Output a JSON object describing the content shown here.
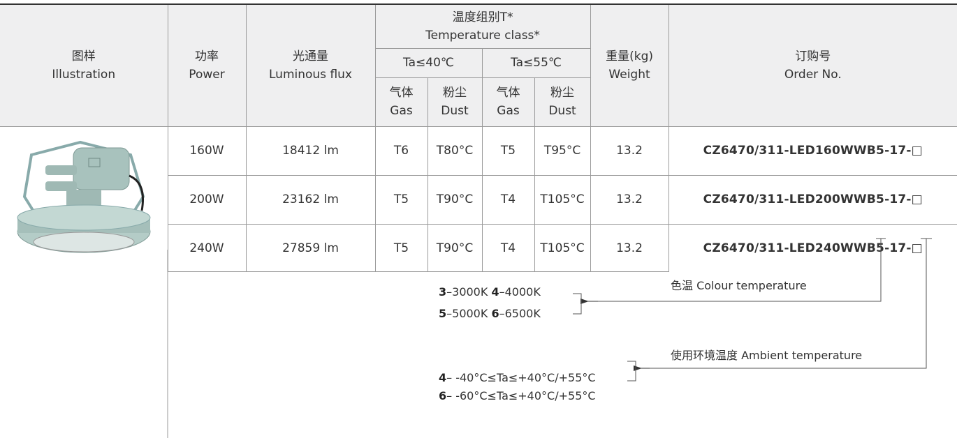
{
  "header": {
    "illustration": [
      "图样",
      "Illustration"
    ],
    "power": [
      "功率",
      "Power"
    ],
    "flux": [
      "光通量",
      "Luminous flux"
    ],
    "temperature_class": [
      "温度组别T*",
      "Temperature class*"
    ],
    "ta40": "Ta≤40℃",
    "ta55": "Ta≤55℃",
    "gas": [
      "气体",
      "Gas"
    ],
    "dust": [
      "粉尘",
      "Dust"
    ],
    "weight": [
      "重量(kg)",
      "Weight"
    ],
    "order": [
      "订购号",
      "Order No."
    ]
  },
  "rows": [
    [
      "160W",
      "18412 lm",
      "T6",
      "T80°C",
      "T5",
      "T95°C",
      "13.2",
      "CZ6470/311-LED160WWB5-17-□"
    ],
    [
      "200W",
      "23162 lm",
      "T5",
      "T90°C",
      "T4",
      "T105°C",
      "13.2",
      "CZ6470/311-LED200WWB5-17-□"
    ],
    [
      "240W",
      "27859 lm",
      "T5",
      "T90°C",
      "T4",
      "T105°C",
      "13.2",
      "CZ6470/311-LED240WWB5-17-□"
    ]
  ],
  "notes": {
    "colour": {
      "label": "色温 Colour temperature",
      "options": [
        {
          "code": "3",
          "text": "–3000K"
        },
        {
          "code": "4",
          "text": "–4000K"
        },
        {
          "code": "5",
          "text": "–5000K"
        },
        {
          "code": "6",
          "text": "–6500K"
        }
      ]
    },
    "ambient": {
      "label": "使用环境温度 Ambient temperature",
      "options": [
        {
          "code": "4",
          "text": "– -40°C≤Ta≤+40°C/+55°C"
        },
        {
          "code": "6",
          "text": "– -60°C≤Ta≤+40°C/+55°C"
        }
      ]
    }
  }
}
